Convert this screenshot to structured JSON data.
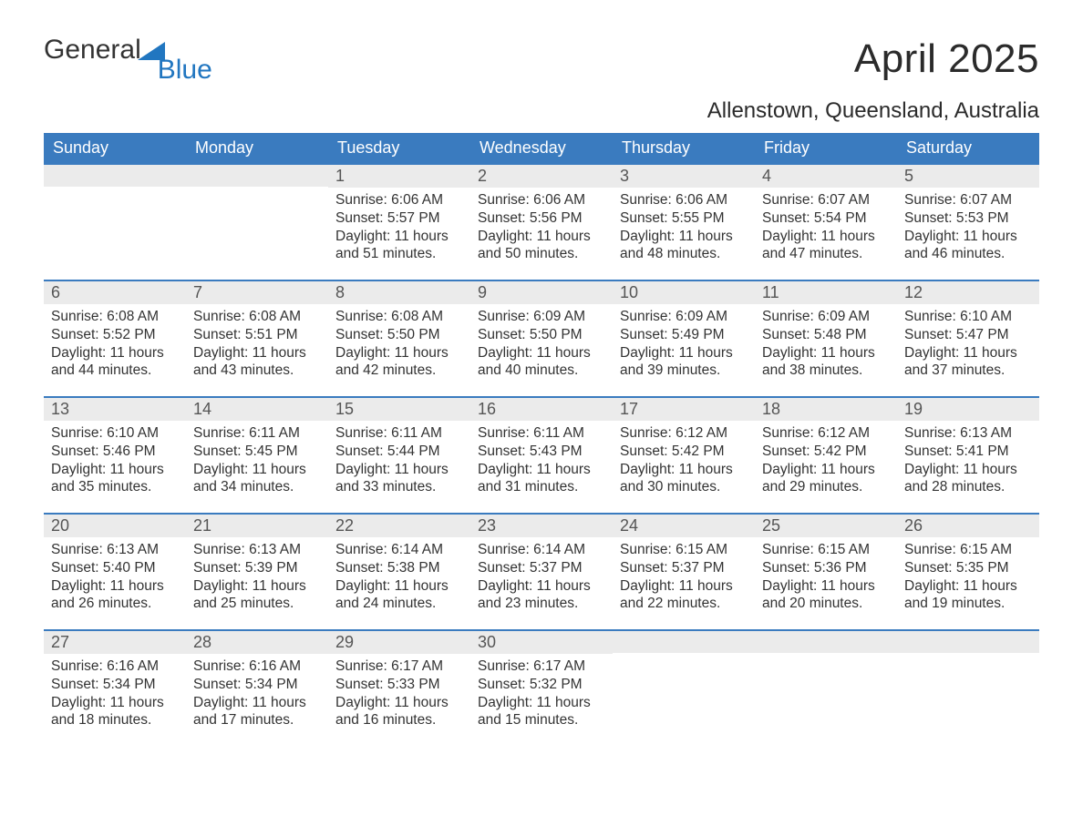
{
  "logo": {
    "word1": "General",
    "word2": "Blue"
  },
  "title": "April 2025",
  "location": "Allenstown, Queensland, Australia",
  "colors": {
    "header_bg": "#3a7bbf",
    "header_text": "#ffffff",
    "daynum_bg": "#ebebeb",
    "daynum_text": "#555555",
    "body_text": "#333333",
    "rule": "#3a7bbf",
    "logo_gray": "#333333",
    "logo_blue": "#2176c0"
  },
  "fonts": {
    "title_size_pt": 33,
    "location_size_pt": 18,
    "header_size_pt": 14,
    "daynum_size_pt": 14,
    "body_size_pt": 12
  },
  "day_headers": [
    "Sunday",
    "Monday",
    "Tuesday",
    "Wednesday",
    "Thursday",
    "Friday",
    "Saturday"
  ],
  "weeks": [
    [
      {
        "n": "",
        "sunrise": "",
        "sunset": "",
        "daylight": ""
      },
      {
        "n": "",
        "sunrise": "",
        "sunset": "",
        "daylight": ""
      },
      {
        "n": "1",
        "sunrise": "Sunrise: 6:06 AM",
        "sunset": "Sunset: 5:57 PM",
        "daylight": "Daylight: 11 hours and 51 minutes."
      },
      {
        "n": "2",
        "sunrise": "Sunrise: 6:06 AM",
        "sunset": "Sunset: 5:56 PM",
        "daylight": "Daylight: 11 hours and 50 minutes."
      },
      {
        "n": "3",
        "sunrise": "Sunrise: 6:06 AM",
        "sunset": "Sunset: 5:55 PM",
        "daylight": "Daylight: 11 hours and 48 minutes."
      },
      {
        "n": "4",
        "sunrise": "Sunrise: 6:07 AM",
        "sunset": "Sunset: 5:54 PM",
        "daylight": "Daylight: 11 hours and 47 minutes."
      },
      {
        "n": "5",
        "sunrise": "Sunrise: 6:07 AM",
        "sunset": "Sunset: 5:53 PM",
        "daylight": "Daylight: 11 hours and 46 minutes."
      }
    ],
    [
      {
        "n": "6",
        "sunrise": "Sunrise: 6:08 AM",
        "sunset": "Sunset: 5:52 PM",
        "daylight": "Daylight: 11 hours and 44 minutes."
      },
      {
        "n": "7",
        "sunrise": "Sunrise: 6:08 AM",
        "sunset": "Sunset: 5:51 PM",
        "daylight": "Daylight: 11 hours and 43 minutes."
      },
      {
        "n": "8",
        "sunrise": "Sunrise: 6:08 AM",
        "sunset": "Sunset: 5:50 PM",
        "daylight": "Daylight: 11 hours and 42 minutes."
      },
      {
        "n": "9",
        "sunrise": "Sunrise: 6:09 AM",
        "sunset": "Sunset: 5:50 PM",
        "daylight": "Daylight: 11 hours and 40 minutes."
      },
      {
        "n": "10",
        "sunrise": "Sunrise: 6:09 AM",
        "sunset": "Sunset: 5:49 PM",
        "daylight": "Daylight: 11 hours and 39 minutes."
      },
      {
        "n": "11",
        "sunrise": "Sunrise: 6:09 AM",
        "sunset": "Sunset: 5:48 PM",
        "daylight": "Daylight: 11 hours and 38 minutes."
      },
      {
        "n": "12",
        "sunrise": "Sunrise: 6:10 AM",
        "sunset": "Sunset: 5:47 PM",
        "daylight": "Daylight: 11 hours and 37 minutes."
      }
    ],
    [
      {
        "n": "13",
        "sunrise": "Sunrise: 6:10 AM",
        "sunset": "Sunset: 5:46 PM",
        "daylight": "Daylight: 11 hours and 35 minutes."
      },
      {
        "n": "14",
        "sunrise": "Sunrise: 6:11 AM",
        "sunset": "Sunset: 5:45 PM",
        "daylight": "Daylight: 11 hours and 34 minutes."
      },
      {
        "n": "15",
        "sunrise": "Sunrise: 6:11 AM",
        "sunset": "Sunset: 5:44 PM",
        "daylight": "Daylight: 11 hours and 33 minutes."
      },
      {
        "n": "16",
        "sunrise": "Sunrise: 6:11 AM",
        "sunset": "Sunset: 5:43 PM",
        "daylight": "Daylight: 11 hours and 31 minutes."
      },
      {
        "n": "17",
        "sunrise": "Sunrise: 6:12 AM",
        "sunset": "Sunset: 5:42 PM",
        "daylight": "Daylight: 11 hours and 30 minutes."
      },
      {
        "n": "18",
        "sunrise": "Sunrise: 6:12 AM",
        "sunset": "Sunset: 5:42 PM",
        "daylight": "Daylight: 11 hours and 29 minutes."
      },
      {
        "n": "19",
        "sunrise": "Sunrise: 6:13 AM",
        "sunset": "Sunset: 5:41 PM",
        "daylight": "Daylight: 11 hours and 28 minutes."
      }
    ],
    [
      {
        "n": "20",
        "sunrise": "Sunrise: 6:13 AM",
        "sunset": "Sunset: 5:40 PM",
        "daylight": "Daylight: 11 hours and 26 minutes."
      },
      {
        "n": "21",
        "sunrise": "Sunrise: 6:13 AM",
        "sunset": "Sunset: 5:39 PM",
        "daylight": "Daylight: 11 hours and 25 minutes."
      },
      {
        "n": "22",
        "sunrise": "Sunrise: 6:14 AM",
        "sunset": "Sunset: 5:38 PM",
        "daylight": "Daylight: 11 hours and 24 minutes."
      },
      {
        "n": "23",
        "sunrise": "Sunrise: 6:14 AM",
        "sunset": "Sunset: 5:37 PM",
        "daylight": "Daylight: 11 hours and 23 minutes."
      },
      {
        "n": "24",
        "sunrise": "Sunrise: 6:15 AM",
        "sunset": "Sunset: 5:37 PM",
        "daylight": "Daylight: 11 hours and 22 minutes."
      },
      {
        "n": "25",
        "sunrise": "Sunrise: 6:15 AM",
        "sunset": "Sunset: 5:36 PM",
        "daylight": "Daylight: 11 hours and 20 minutes."
      },
      {
        "n": "26",
        "sunrise": "Sunrise: 6:15 AM",
        "sunset": "Sunset: 5:35 PM",
        "daylight": "Daylight: 11 hours and 19 minutes."
      }
    ],
    [
      {
        "n": "27",
        "sunrise": "Sunrise: 6:16 AM",
        "sunset": "Sunset: 5:34 PM",
        "daylight": "Daylight: 11 hours and 18 minutes."
      },
      {
        "n": "28",
        "sunrise": "Sunrise: 6:16 AM",
        "sunset": "Sunset: 5:34 PM",
        "daylight": "Daylight: 11 hours and 17 minutes."
      },
      {
        "n": "29",
        "sunrise": "Sunrise: 6:17 AM",
        "sunset": "Sunset: 5:33 PM",
        "daylight": "Daylight: 11 hours and 16 minutes."
      },
      {
        "n": "30",
        "sunrise": "Sunrise: 6:17 AM",
        "sunset": "Sunset: 5:32 PM",
        "daylight": "Daylight: 11 hours and 15 minutes."
      },
      {
        "n": "",
        "sunrise": "",
        "sunset": "",
        "daylight": ""
      },
      {
        "n": "",
        "sunrise": "",
        "sunset": "",
        "daylight": ""
      },
      {
        "n": "",
        "sunrise": "",
        "sunset": "",
        "daylight": ""
      }
    ]
  ]
}
